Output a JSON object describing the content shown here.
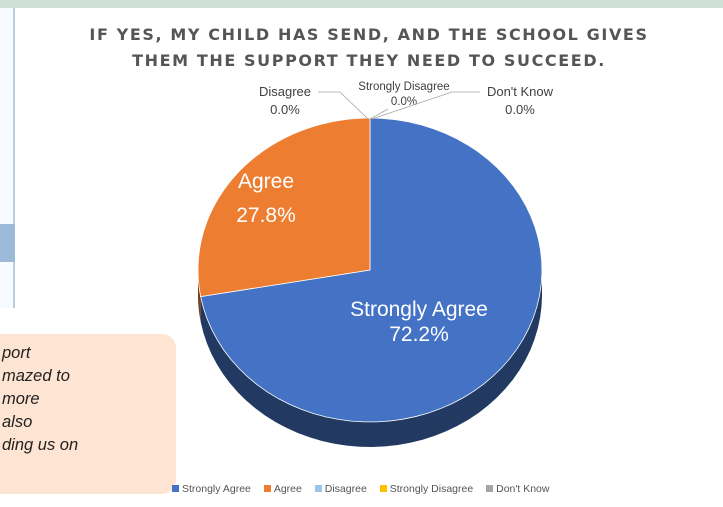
{
  "colors": {
    "strongly_agree": "#4472c4",
    "agree": "#ed7d31",
    "disagree": "#9dc3e6",
    "strongly_disagree": "#ffc000",
    "dont_know": "#a5a5a5"
  },
  "quote": {
    "lines": [
      "port",
      "mazed to",
      "more",
      "also",
      "ding us on"
    ]
  },
  "chart_data": {
    "type": "pie",
    "title": "IF YES, MY CHILD HAS SEND, AND THE SCHOOL GIVES\nTHEM THE SUPPORT THEY NEED TO SUCCEED.",
    "slices": [
      {
        "label": "Strongly Agree",
        "value": 72.2,
        "value_label": "72.2%",
        "color": "#4472c4"
      },
      {
        "label": "Agree",
        "value": 27.8,
        "value_label": "27.8%",
        "color": "#ed7d31"
      },
      {
        "label": "Disagree",
        "value": 0.0,
        "value_label": "0.0%",
        "color": "#9dc3e6"
      },
      {
        "label": "Strongly Disagree",
        "value": 0.0,
        "value_label": "0.0%",
        "color": "#ffc000"
      },
      {
        "label": "Don't Know",
        "value": 0.0,
        "value_label": "0.0%",
        "color": "#a5a5a5"
      }
    ],
    "legend": [
      "Strongly Agree",
      "Agree",
      "Disagree",
      "Strongly Disagree",
      "Don't Know"
    ],
    "legend_position": "bottom"
  }
}
